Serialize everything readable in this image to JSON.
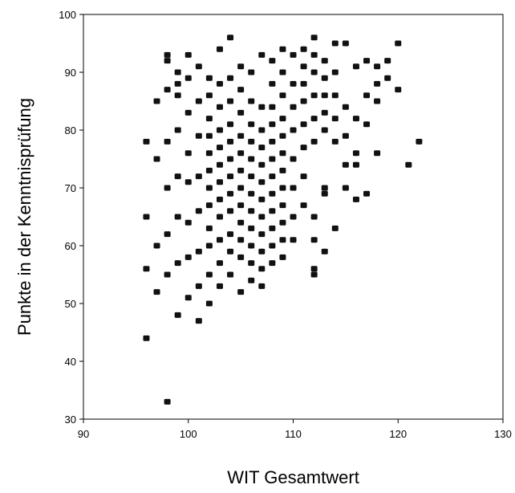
{
  "chart_data": {
    "type": "scatter",
    "title": "",
    "xlabel": "WIT Gesamtwert",
    "ylabel": "Punkte in der Kenntnisprüfung",
    "xlim": [
      90,
      130
    ],
    "ylim": [
      30,
      100
    ],
    "xticks": [
      90,
      100,
      110,
      120,
      130
    ],
    "yticks": [
      30,
      40,
      50,
      60,
      70,
      80,
      90,
      100
    ],
    "grid": false,
    "legend": "none",
    "marker": "square",
    "marker_color": "#111111",
    "series": [
      {
        "x": [
          96,
          96,
          96,
          96,
          97,
          97,
          97,
          97,
          98,
          98,
          98,
          98,
          98,
          98,
          98,
          98,
          99,
          99,
          99,
          99,
          99,
          99,
          99,
          99,
          100,
          100,
          100,
          100,
          100,
          100,
          100,
          100,
          101,
          101,
          101,
          101,
          101,
          101,
          101,
          101,
          102,
          102,
          102,
          102,
          102,
          102,
          102,
          102,
          102,
          102,
          102,
          102,
          103,
          103,
          103,
          103,
          103,
          103,
          103,
          103,
          103,
          103,
          103,
          103,
          104,
          104,
          104,
          104,
          104,
          104,
          104,
          104,
          104,
          104,
          104,
          104,
          105,
          105,
          105,
          105,
          105,
          105,
          105,
          105,
          105,
          105,
          105,
          105,
          106,
          106,
          106,
          106,
          106,
          106,
          106,
          106,
          106,
          106,
          106,
          106,
          107,
          107,
          107,
          107,
          107,
          107,
          107,
          107,
          107,
          107,
          107,
          107,
          108,
          108,
          108,
          108,
          108,
          108,
          108,
          108,
          108,
          108,
          108,
          108,
          109,
          109,
          109,
          109,
          109,
          109,
          109,
          109,
          109,
          109,
          109,
          109,
          110,
          110,
          110,
          110,
          110,
          110,
          110,
          110,
          111,
          111,
          111,
          111,
          111,
          111,
          111,
          111,
          112,
          112,
          112,
          112,
          112,
          112,
          112,
          112,
          112,
          112,
          113,
          113,
          113,
          113,
          113,
          113,
          113,
          113,
          114,
          114,
          114,
          114,
          114,
          114,
          115,
          115,
          115,
          115,
          115,
          116,
          116,
          116,
          116,
          116,
          117,
          117,
          117,
          117,
          118,
          118,
          118,
          118,
          119,
          119,
          120,
          120,
          121,
          122
        ],
        "y": [
          44,
          56,
          65,
          78,
          52,
          60,
          75,
          85,
          33,
          55,
          62,
          70,
          78,
          87,
          92,
          93,
          48,
          57,
          65,
          72,
          80,
          86,
          88,
          90,
          51,
          58,
          64,
          71,
          76,
          83,
          89,
          93,
          47,
          53,
          59,
          66,
          72,
          79,
          85,
          91,
          50,
          55,
          60,
          63,
          67,
          70,
          73,
          76,
          79,
          82,
          86,
          89,
          53,
          57,
          61,
          65,
          68,
          71,
          74,
          77,
          80,
          84,
          88,
          94,
          55,
          59,
          62,
          66,
          69,
          72,
          75,
          78,
          81,
          85,
          89,
          96,
          52,
          58,
          61,
          64,
          67,
          70,
          73,
          76,
          79,
          83,
          87,
          91,
          54,
          57,
          60,
          63,
          66,
          69,
          72,
          75,
          78,
          81,
          85,
          90,
          53,
          56,
          59,
          62,
          65,
          68,
          71,
          74,
          77,
          80,
          84,
          93,
          57,
          60,
          63,
          66,
          69,
          72,
          75,
          78,
          81,
          84,
          88,
          92,
          58,
          61,
          64,
          67,
          70,
          73,
          76,
          79,
          82,
          86,
          90,
          94,
          61,
          65,
          70,
          75,
          80,
          84,
          88,
          93,
          67,
          72,
          77,
          81,
          85,
          88,
          91,
          94,
          55,
          56,
          61,
          65,
          78,
          82,
          86,
          90,
          93,
          96,
          59,
          69,
          70,
          80,
          83,
          86,
          89,
          92,
          63,
          78,
          82,
          86,
          90,
          95,
          70,
          74,
          79,
          84,
          95,
          68,
          74,
          76,
          82,
          91,
          69,
          81,
          86,
          92,
          76,
          85,
          88,
          91,
          89,
          92,
          87,
          95,
          74,
          78
        ]
      }
    ]
  }
}
